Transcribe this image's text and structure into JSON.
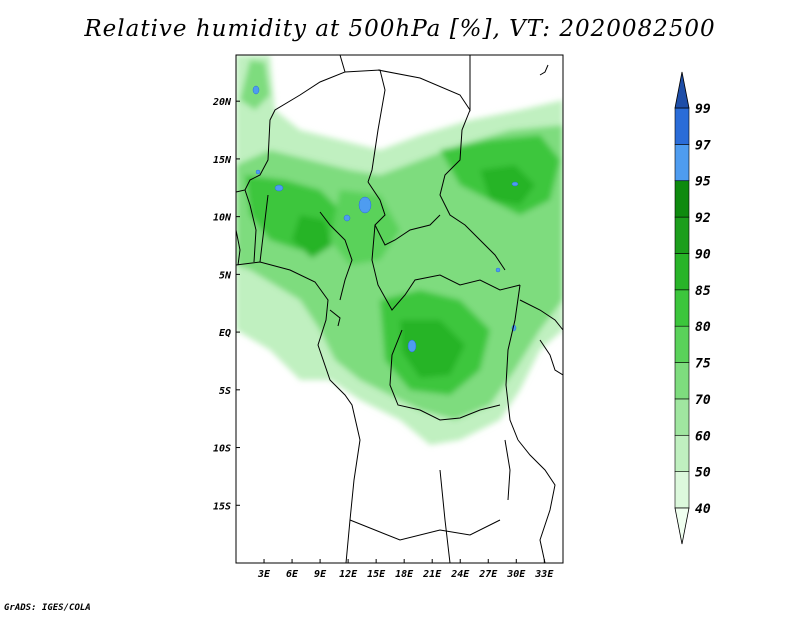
{
  "title": "Relative humidity at 500hPa [%], VT: 2020082500",
  "credit": "GrADS: IGES/COLA",
  "chart_data": {
    "type": "heatmap",
    "title": "Relative humidity at 500hPa [%], VT: 2020082500",
    "variable": "Relative humidity",
    "level": "500hPa",
    "units": "%",
    "valid_time": "2020082500",
    "domain_lon": [
      0,
      35
    ],
    "domain_lat": [
      -20,
      24
    ],
    "x_ticks": [
      "3E",
      "6E",
      "9E",
      "12E",
      "15E",
      "18E",
      "21E",
      "24E",
      "27E",
      "30E",
      "33E"
    ],
    "x_tick_values": [
      3,
      6,
      9,
      12,
      15,
      18,
      21,
      24,
      27,
      30,
      33
    ],
    "y_ticks": [
      "20N",
      "15N",
      "10N",
      "5N",
      "EQ",
      "5S",
      "10S",
      "15S"
    ],
    "y_tick_values": [
      20,
      15,
      10,
      5,
      0,
      -5,
      -10,
      -15
    ],
    "colorbar": {
      "levels": [
        "40",
        "50",
        "60",
        "70",
        "75",
        "80",
        "85",
        "90",
        "92",
        "95",
        "97",
        "99"
      ],
      "colors": [
        "#f0fff0",
        "#dcf8dc",
        "#c0f0c0",
        "#a0e6a0",
        "#7edc7e",
        "#5ad25a",
        "#3cc63c",
        "#28b428",
        "#1c9e1c",
        "#0e8a0e",
        "#4e9cf0",
        "#2a6cd8",
        "#1e4ea8"
      ],
      "extend": "both"
    },
    "features": [
      "coastlines",
      "country borders"
    ]
  }
}
